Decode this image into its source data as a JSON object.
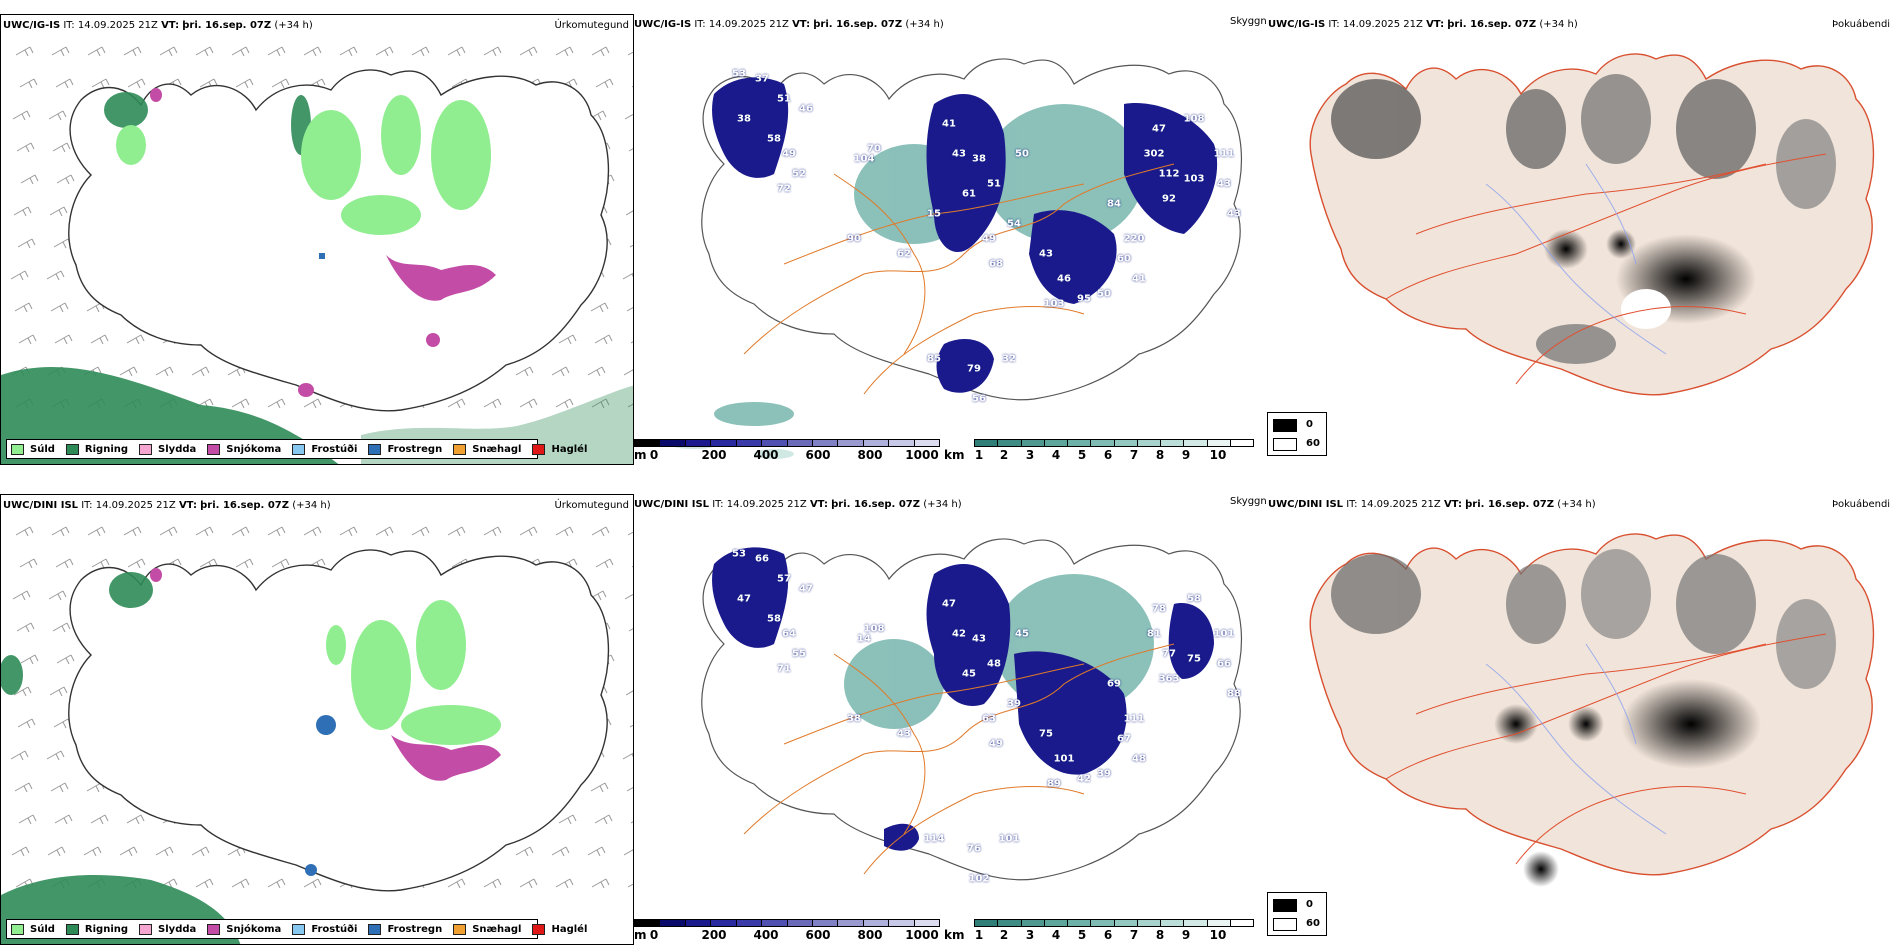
{
  "rows": [
    {
      "model": "UWC/IG-IS",
      "it_label": "IT:",
      "it_value": "14.09.2025 21Z",
      "vt_label": "VT:",
      "vt_value": "þri. 16.sep. 07Z",
      "lead": "(+34 h)",
      "precip_title": "Úrkomutegund",
      "cloud_title": "Skyggni",
      "fog_title": "Þokuábendi",
      "cloud_labels": [
        "53",
        "37",
        "51",
        "46",
        "38",
        "58",
        "49",
        "52",
        "72",
        "41",
        "43",
        "38",
        "51",
        "61",
        "50",
        "54",
        "49",
        "68",
        "43",
        "46",
        "103",
        "95",
        "50",
        "41",
        "60",
        "220",
        "84",
        "47",
        "108",
        "302",
        "112",
        "103",
        "92",
        "111",
        "43",
        "79",
        "56",
        "32",
        "85",
        "62",
        "90",
        "70",
        "104",
        "43",
        "15"
      ]
    },
    {
      "model": "UWC/DINI ISL",
      "it_label": "IT:",
      "it_value": "14.09.2025 21Z",
      "vt_label": "VT:",
      "vt_value": "þri. 16.sep. 07Z",
      "lead": "(+34 h)",
      "precip_title": "Úrkomutegund",
      "cloud_title": "Skyggni",
      "fog_title": "Þokuábendi",
      "cloud_labels": [
        "53",
        "66",
        "57",
        "47",
        "47",
        "58",
        "64",
        "55",
        "71",
        "47",
        "42",
        "43",
        "48",
        "45",
        "45",
        "39",
        "63",
        "49",
        "75",
        "101",
        "89",
        "42",
        "39",
        "48",
        "67",
        "111",
        "69",
        "78",
        "58",
        "81",
        "77",
        "75",
        "363",
        "101",
        "66",
        "76",
        "102",
        "101",
        "114",
        "43",
        "38",
        "108",
        "14",
        "88"
      ]
    }
  ],
  "precip_legend": [
    {
      "label": "Súld",
      "color": "#90ee90"
    },
    {
      "label": "Rigning",
      "color": "#2e8b57"
    },
    {
      "label": "Slydda",
      "color": "#f4a6d0"
    },
    {
      "label": "Snjókoma",
      "color": "#c34da6"
    },
    {
      "label": "Frostúði",
      "color": "#87c8f0"
    },
    {
      "label": "Frostregn",
      "color": "#2f6fb5"
    },
    {
      "label": "Snæhagl",
      "color": "#f0a030"
    },
    {
      "label": "Haglél",
      "color": "#e01818"
    }
  ],
  "ceiling_bar": {
    "unit": "m",
    "ticks": [
      "0",
      "200",
      "400",
      "600",
      "800",
      "1000"
    ],
    "colors": [
      "#000000",
      "#0a0a6a",
      "#1a1a8c",
      "#2a2aa0",
      "#3a3aa8",
      "#5050b0",
      "#6a6ab8",
      "#8080c4",
      "#9a9ad0",
      "#b0b0dc",
      "#c8c8e8",
      "#dcdcf0"
    ]
  },
  "vis_bar": {
    "unit": "km",
    "ticks": [
      "1",
      "2",
      "3",
      "4",
      "5",
      "6",
      "7",
      "8",
      "9",
      "10"
    ],
    "colors": [
      "#2f7f78",
      "#3f8c85",
      "#4e9890",
      "#5ea59c",
      "#6eb1a8",
      "#80bcb4",
      "#93c8c0",
      "#a7d3cc",
      "#bcded9",
      "#d2e9e6",
      "#e9f4f3",
      "#ffffff"
    ]
  },
  "fog_legend": {
    "high": "0",
    "low": "60",
    "high_color": "#000000",
    "low_color": "#ffffff"
  }
}
